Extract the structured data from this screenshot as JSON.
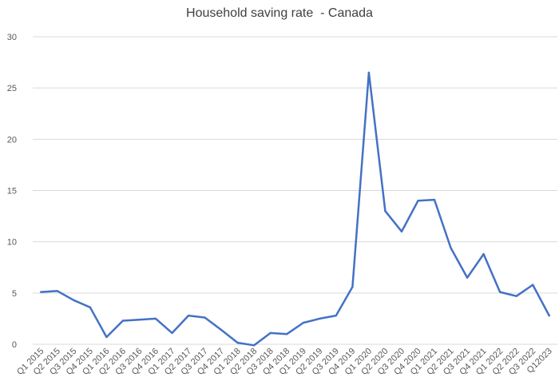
{
  "chart_data": {
    "type": "line",
    "title": "Household saving rate  - Canada",
    "xlabel": "",
    "ylabel": "",
    "ylim": [
      0,
      30
    ],
    "yticks": [
      0,
      5,
      10,
      15,
      20,
      25,
      30
    ],
    "grid": true,
    "legend": "none",
    "categories": [
      "Q1 2015",
      "Q2 2015",
      "Q3 2015",
      "Q4 2015",
      "Q1 2016",
      "Q2 2016",
      "Q3 2016",
      "Q4 2016",
      "Q1 2017",
      "Q2 2017",
      "Q3 2017",
      "Q4 2017",
      "Q1 2018",
      "Q2 2018",
      "Q3 2018",
      "Q4 2018",
      "Q1 2019",
      "Q2 2019",
      "Q3 2019",
      "Q4 2019",
      "Q1 2020",
      "Q2 2020",
      "Q3 2020",
      "Q4 2020",
      "Q1 2021",
      "Q2 2021",
      "Q3 2021",
      "Q4 2021",
      "Q1 2022",
      "Q2 2022",
      "Q3 2022",
      "Q12023"
    ],
    "series": [
      {
        "name": "",
        "color": "#4472c4",
        "values": [
          5.1,
          5.2,
          4.3,
          3.6,
          0.7,
          2.3,
          2.4,
          2.5,
          1.1,
          2.8,
          2.6,
          1.4,
          0.15,
          -0.1,
          1.1,
          1.0,
          2.1,
          2.5,
          2.8,
          5.6,
          26.5,
          13.0,
          11.0,
          14.0,
          14.1,
          9.4,
          6.5,
          8.8,
          5.1,
          4.7,
          5.8,
          2.8
        ]
      }
    ]
  }
}
